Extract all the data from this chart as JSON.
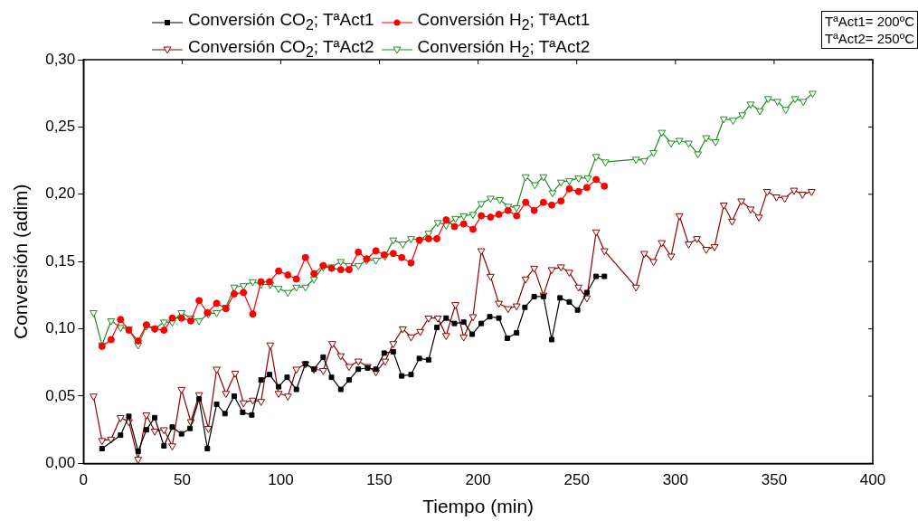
{
  "chart_data": {
    "type": "line",
    "xlabel": "Tiempo (min)",
    "ylabel": "Conversión (adim)",
    "xlim": [
      0,
      400
    ],
    "ylim": [
      0,
      0.3
    ],
    "xticks": [
      0,
      50,
      100,
      150,
      200,
      250,
      300,
      350,
      400
    ],
    "yticks": [
      {
        "value": 0,
        "label": "0,00"
      },
      {
        "value": 0.05,
        "label": "0,05"
      },
      {
        "value": 0.1,
        "label": "0,10"
      },
      {
        "value": 0.15,
        "label": "0,15"
      },
      {
        "value": 0.2,
        "label": "0,20"
      },
      {
        "value": 0.25,
        "label": "0,25"
      },
      {
        "value": 0.3,
        "label": "0,30"
      }
    ],
    "grid": false,
    "legend": "top",
    "line_style": "solid",
    "annotations": [
      "TªAct1= 200ºC",
      "TªAct2= 250ºC"
    ],
    "series": [
      {
        "name": "Conversión CO$_{2}$; TªAct1",
        "color": "#000000",
        "marker": "square",
        "x": [
          9.4,
          18.8,
          23,
          27.7,
          31.9,
          36.1,
          40.8,
          45,
          49.7,
          54,
          58.6,
          62.8,
          67.5,
          71.7,
          76.4,
          80.7,
          85.3,
          90,
          94.3,
          98.9,
          103.2,
          107.9,
          112.5,
          116.8,
          121.5,
          125.7,
          130.4,
          134.6,
          139.3,
          144,
          148.2,
          152.4,
          157,
          161.3,
          166,
          170.2,
          174.9,
          179.1,
          183.8,
          188,
          192.7,
          197,
          201.6,
          205.9,
          210.5,
          214.8,
          219.5,
          223.7,
          228.4,
          233.1,
          237.3,
          241.5,
          246.2,
          250.4,
          255.1,
          259.8,
          264
        ],
        "values": [
          0.011,
          0.021,
          0.035,
          0.009,
          0.025,
          0.034,
          0.013,
          0.027,
          0.022,
          0.026,
          0.048,
          0.011,
          0.044,
          0.037,
          0.05,
          0.038,
          0.036,
          0.062,
          0.066,
          0.057,
          0.064,
          0.055,
          0.074,
          0.07,
          0.079,
          0.064,
          0.055,
          0.062,
          0.07,
          0.071,
          0.07,
          0.082,
          0.083,
          0.065,
          0.066,
          0.078,
          0.077,
          0.101,
          0.108,
          0.104,
          0.105,
          0.096,
          0.104,
          0.109,
          0.108,
          0.093,
          0.097,
          0.116,
          0.124,
          0.124,
          0.092,
          0.123,
          0.12,
          0.114,
          0.127,
          0.139,
          0.139
        ]
      },
      {
        "name": "Conversión H$_{2}$; TªAct1",
        "color": "#ff0000",
        "marker": "circle",
        "x": [
          9.4,
          14,
          18.8,
          23,
          27.7,
          31.9,
          36.1,
          40.8,
          45,
          49.7,
          54.4,
          58.6,
          62.8,
          67.5,
          72.2,
          76.4,
          81.1,
          85.8,
          90,
          94.3,
          98.9,
          103.6,
          107.9,
          112.5,
          116.8,
          121.5,
          125.7,
          130.4,
          134.6,
          139.3,
          143.5,
          148.2,
          152.4,
          157,
          161.3,
          166,
          170.2,
          174.9,
          179.1,
          183.8,
          188,
          192.7,
          197.4,
          201.6,
          206.3,
          210.5,
          215.2,
          219.5,
          224.1,
          228.4,
          233.1,
          237.3,
          242,
          246.2,
          250.9,
          255.1,
          259.8,
          264
        ],
        "values": [
          0.087,
          0.092,
          0.107,
          0.099,
          0.091,
          0.103,
          0.1,
          0.099,
          0.108,
          0.108,
          0.106,
          0.121,
          0.112,
          0.119,
          0.115,
          0.126,
          0.127,
          0.111,
          0.135,
          0.135,
          0.143,
          0.14,
          0.137,
          0.153,
          0.141,
          0.147,
          0.145,
          0.144,
          0.144,
          0.157,
          0.152,
          0.158,
          0.155,
          0.156,
          0.153,
          0.149,
          0.166,
          0.167,
          0.167,
          0.181,
          0.176,
          0.178,
          0.174,
          0.184,
          0.183,
          0.185,
          0.188,
          0.184,
          0.194,
          0.188,
          0.194,
          0.192,
          0.195,
          0.204,
          0.202,
          0.205,
          0.211,
          0.206
        ]
      },
      {
        "name": "Conversión CO$_{2}$; TªAct2",
        "color": "#8b0000",
        "marker": "triangle",
        "x": [
          5.1,
          9.4,
          14,
          18.8,
          23,
          27.7,
          31.9,
          36.1,
          40.8,
          45,
          49.7,
          54.4,
          58.6,
          63.3,
          67.5,
          72.2,
          76.9,
          81.1,
          85.8,
          90,
          94.7,
          98.9,
          103.6,
          107.9,
          112.5,
          116.8,
          121.5,
          126.1,
          130.4,
          134.6,
          139.3,
          144,
          148.2,
          152.9,
          157,
          161.8,
          166,
          170.7,
          174.9,
          179.6,
          183.8,
          188.5,
          192.7,
          197.4,
          201.6,
          206.3,
          210.5,
          215.2,
          219.5,
          224.1,
          228.4,
          233.1,
          237.3,
          242,
          246.2,
          250.9,
          255.1,
          259.8,
          264,
          280,
          284.2,
          288.9,
          293.1,
          297.8,
          302,
          306.7,
          310.9,
          315.6,
          319.8,
          324.5,
          328.7,
          333.4,
          338.1,
          342.3,
          346.5,
          351.2,
          355.4,
          360.1,
          364.4,
          369
        ],
        "values": [
          0.05,
          0.017,
          0.018,
          0.034,
          0.031,
          0.003,
          0.036,
          0.024,
          0.025,
          0.013,
          0.055,
          0.031,
          0.051,
          0.026,
          0.07,
          0.052,
          0.067,
          0.045,
          0.047,
          0.046,
          0.088,
          0.052,
          0.05,
          0.07,
          0.074,
          0.07,
          0.069,
          0.089,
          0.08,
          0.072,
          0.076,
          0.072,
          0.068,
          0.076,
          0.089,
          0.1,
          0.094,
          0.098,
          0.108,
          0.108,
          0.095,
          0.118,
          0.094,
          0.109,
          0.158,
          0.139,
          0.119,
          0.115,
          0.117,
          0.137,
          0.145,
          0.125,
          0.144,
          0.146,
          0.142,
          0.131,
          0.123,
          0.172,
          0.158,
          0.131,
          0.156,
          0.15,
          0.164,
          0.154,
          0.184,
          0.163,
          0.167,
          0.159,
          0.161,
          0.192,
          0.18,
          0.195,
          0.189,
          0.183,
          0.202,
          0.198,
          0.197,
          0.203,
          0.2,
          0.202
        ]
      },
      {
        "name": "Conversión H$_{2}$; TªAct2",
        "color": "#1e8c1e",
        "marker": "triangle",
        "x": [
          5.1,
          9.4,
          14,
          18.8,
          23,
          27.7,
          31.9,
          36.1,
          40.8,
          45,
          49.7,
          54.4,
          58.6,
          63.3,
          67.5,
          72.2,
          76.4,
          81.1,
          85.8,
          90,
          94.7,
          98.9,
          103.6,
          107.9,
          112.5,
          116.8,
          121.5,
          125.7,
          130.4,
          134.6,
          139.3,
          143.5,
          148.2,
          152.9,
          157,
          161.8,
          166,
          170.7,
          174.9,
          179.6,
          183.8,
          188.5,
          192.7,
          197.4,
          201.6,
          206.3,
          211,
          215.2,
          219.5,
          224.1,
          228.8,
          233.1,
          237.7,
          242,
          246.2,
          250.9,
          255.6,
          259.8,
          264.5,
          280,
          284.2,
          288.9,
          293.1,
          297.8,
          302,
          306.7,
          311.4,
          315.6,
          320.3,
          324.5,
          329.2,
          333.9,
          338.1,
          342.8,
          347,
          351.7,
          355.9,
          360.6,
          364.8,
          369.5
        ],
        "values": [
          0.112,
          0.088,
          0.106,
          0.101,
          0.1,
          0.088,
          0.102,
          0.1,
          0.105,
          0.105,
          0.112,
          0.108,
          0.106,
          0.111,
          0.112,
          0.116,
          0.131,
          0.132,
          0.135,
          0.133,
          0.133,
          0.13,
          0.127,
          0.131,
          0.131,
          0.137,
          0.146,
          0.146,
          0.15,
          0.147,
          0.147,
          0.151,
          0.151,
          0.154,
          0.166,
          0.163,
          0.167,
          0.166,
          0.171,
          0.179,
          0.177,
          0.182,
          0.184,
          0.185,
          0.193,
          0.197,
          0.196,
          0.191,
          0.19,
          0.213,
          0.207,
          0.213,
          0.201,
          0.209,
          0.21,
          0.212,
          0.212,
          0.228,
          0.224,
          0.226,
          0.225,
          0.231,
          0.246,
          0.238,
          0.24,
          0.238,
          0.23,
          0.242,
          0.239,
          0.256,
          0.255,
          0.259,
          0.267,
          0.262,
          0.271,
          0.269,
          0.263,
          0.271,
          0.269,
          0.275
        ]
      }
    ]
  }
}
